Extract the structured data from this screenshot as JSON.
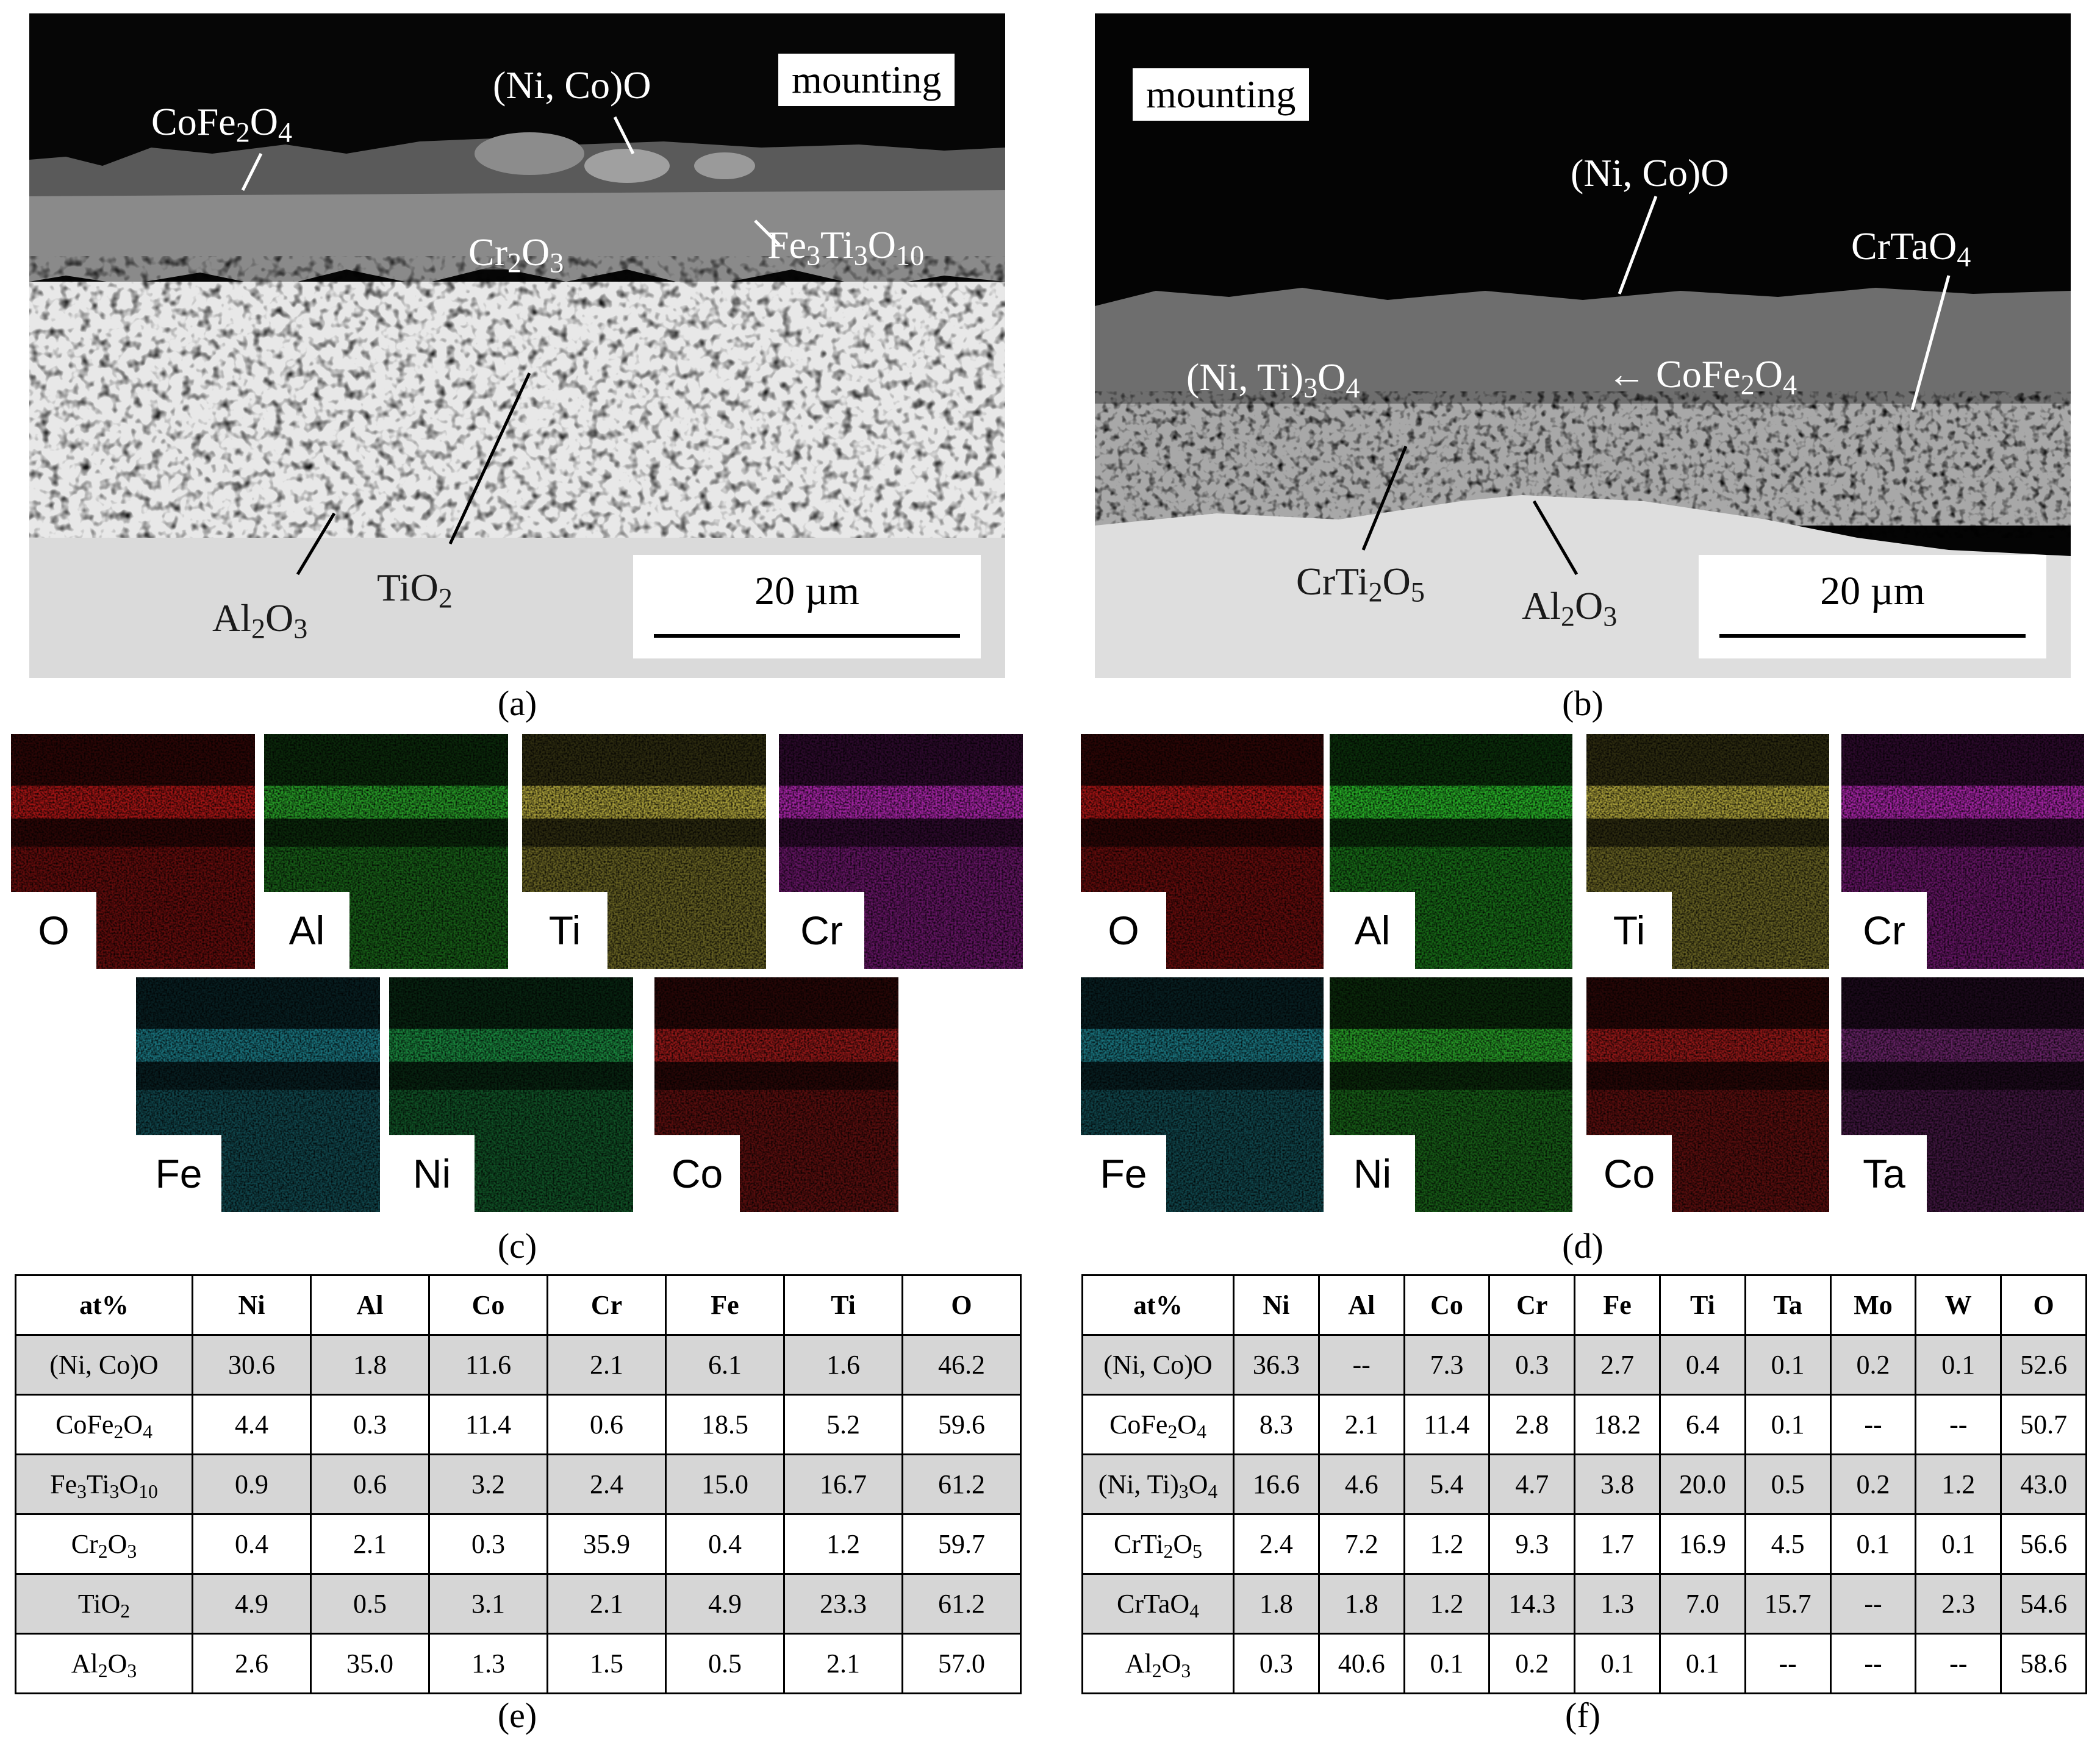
{
  "panels": {
    "a": {
      "letter": "(a)",
      "mounting": "mounting",
      "scale": "20 µm",
      "labels": {
        "nico_o": "(Ni, Co)O",
        "cofe2o4": "CoFe<sub>2</sub>O<sub>4</sub>",
        "cr2o3": "Cr<sub>2</sub>O<sub>3</sub>",
        "fe3ti3o10": "Fe<sub>3</sub>Ti<sub>3</sub>O<sub>10</sub>",
        "al2o3": "Al<sub>2</sub>O<sub>3</sub>",
        "tio2": "TiO<sub>2</sub>"
      }
    },
    "b": {
      "letter": "(b)",
      "mounting": "mounting",
      "scale": "20 µm",
      "labels": {
        "nico_o": "(Ni, Co)O",
        "crtao4": "CrTaO<sub>4</sub>",
        "niti3o4": "(Ni, Ti)<sub>3</sub>O<sub>4</sub>",
        "cofe2o4": "← CoFe<sub>2</sub>O<sub>4</sub>",
        "crti2o5": "CrTi<sub>2</sub>O<sub>5</sub>",
        "al2o3": "Al<sub>2</sub>O<sub>3</sub>"
      }
    },
    "c": {
      "letter": "(c)",
      "maps": [
        {
          "element": "O",
          "color": "#c41818"
        },
        {
          "element": "Al",
          "color": "#2fb82f"
        },
        {
          "element": "Ti",
          "color": "#c9bd45"
        },
        {
          "element": "Cr",
          "color": "#c42bc4"
        },
        {
          "element": "Fe",
          "color": "#1f8a95"
        },
        {
          "element": "Ni",
          "color": "#1fa04a"
        },
        {
          "element": "Co",
          "color": "#b01c1c"
        }
      ]
    },
    "d": {
      "letter": "(d)",
      "maps": [
        {
          "element": "O",
          "color": "#c41818"
        },
        {
          "element": "Al",
          "color": "#2fd02f"
        },
        {
          "element": "Ti",
          "color": "#c9bd45"
        },
        {
          "element": "Cr",
          "color": "#c42bc4"
        },
        {
          "element": "Fe",
          "color": "#1f8a95"
        },
        {
          "element": "Ni",
          "color": "#2fb82f"
        },
        {
          "element": "Co",
          "color": "#b01c1c"
        },
        {
          "element": "Ta",
          "color": "#7a2a7a"
        }
      ]
    },
    "e": {
      "letter": "(e)",
      "headers": [
        "at%",
        "Ni",
        "Al",
        "Co",
        "Cr",
        "Fe",
        "Ti",
        "O"
      ],
      "rows": [
        {
          "phase": "(Ni, Co)O",
          "values": [
            "30.6",
            "1.8",
            "11.6",
            "2.1",
            "6.1",
            "1.6",
            "46.2"
          ]
        },
        {
          "phase": "CoFe<sub>2</sub>O<sub>4</sub>",
          "values": [
            "4.4",
            "0.3",
            "11.4",
            "0.6",
            "18.5",
            "5.2",
            "59.6"
          ]
        },
        {
          "phase": "Fe<sub>3</sub>Ti<sub>3</sub>O<sub>10</sub>",
          "values": [
            "0.9",
            "0.6",
            "3.2",
            "2.4",
            "15.0",
            "16.7",
            "61.2"
          ]
        },
        {
          "phase": "Cr<sub>2</sub>O<sub>3</sub>",
          "values": [
            "0.4",
            "2.1",
            "0.3",
            "35.9",
            "0.4",
            "1.2",
            "59.7"
          ]
        },
        {
          "phase": "TiO<sub>2</sub>",
          "values": [
            "4.9",
            "0.5",
            "3.1",
            "2.1",
            "4.9",
            "23.3",
            "61.2"
          ]
        },
        {
          "phase": "Al<sub>2</sub>O<sub>3</sub>",
          "values": [
            "2.6",
            "35.0",
            "1.3",
            "1.5",
            "0.5",
            "2.1",
            "57.0"
          ]
        }
      ]
    },
    "f": {
      "letter": "(f)",
      "headers": [
        "at%",
        "Ni",
        "Al",
        "Co",
        "Cr",
        "Fe",
        "Ti",
        "Ta",
        "Mo",
        "W",
        "O"
      ],
      "rows": [
        {
          "phase": "(Ni, Co)O",
          "values": [
            "36.3",
            "--",
            "7.3",
            "0.3",
            "2.7",
            "0.4",
            "0.1",
            "0.2",
            "0.1",
            "52.6"
          ]
        },
        {
          "phase": "CoFe<sub>2</sub>O<sub>4</sub>",
          "values": [
            "8.3",
            "2.1",
            "11.4",
            "2.8",
            "18.2",
            "6.4",
            "0.1",
            "--",
            "--",
            "50.7"
          ]
        },
        {
          "phase": "(Ni, Ti)<sub>3</sub>O<sub>4</sub>",
          "values": [
            "16.6",
            "4.6",
            "5.4",
            "4.7",
            "3.8",
            "20.0",
            "0.5",
            "0.2",
            "1.2",
            "43.0"
          ]
        },
        {
          "phase": "CrTi<sub>2</sub>O<sub>5</sub>",
          "values": [
            "2.4",
            "7.2",
            "1.2",
            "9.3",
            "1.7",
            "16.9",
            "4.5",
            "0.1",
            "0.1",
            "56.6"
          ]
        },
        {
          "phase": "CrTaO<sub>4</sub>",
          "values": [
            "1.8",
            "1.8",
            "1.2",
            "14.3",
            "1.3",
            "7.0",
            "15.7",
            "--",
            "2.3",
            "54.6"
          ]
        },
        {
          "phase": "Al<sub>2</sub>O<sub>3</sub>",
          "values": [
            "0.3",
            "40.6",
            "0.1",
            "0.2",
            "0.1",
            "0.1",
            "--",
            "--",
            "--",
            "58.6"
          ]
        }
      ]
    }
  }
}
